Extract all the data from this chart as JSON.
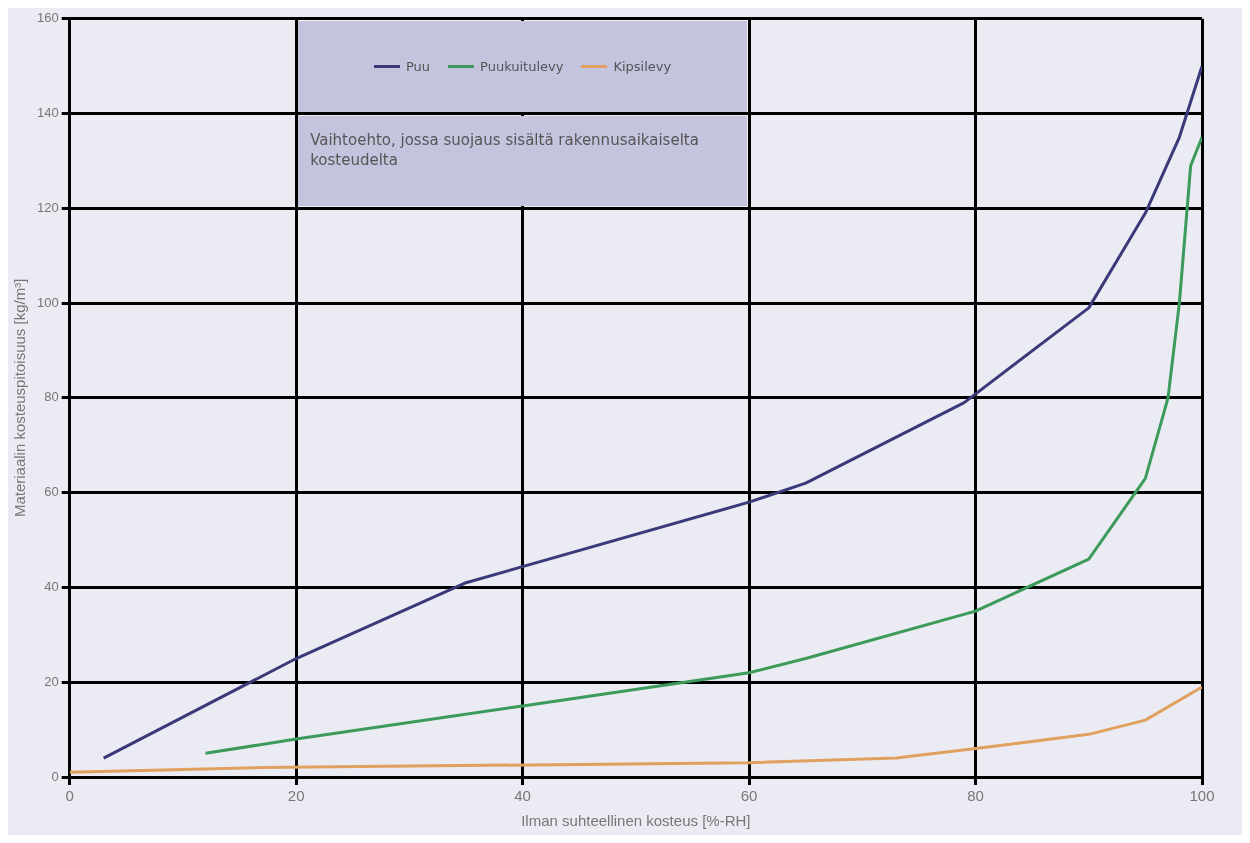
{
  "chart_data": {
    "type": "line",
    "xlabel": "Ilman suhteellinen kosteus [%-RH]",
    "ylabel": "Materiaalin kosteuspitoisuus [kg/m³]",
    "xlim": [
      0,
      100
    ],
    "xticks": [
      0,
      20,
      40,
      60,
      80,
      100
    ],
    "ylim": [
      0,
      160
    ],
    "yticks": [
      0,
      20,
      40,
      60,
      80,
      100,
      120,
      140,
      160
    ],
    "grid": true,
    "legend": "top",
    "marker": "none",
    "line_style": "solid",
    "annotations": [
      "Vaihtoehto, jossa suojaus sisältä rakennusaikaiselta kosteudelta"
    ],
    "series": [
      {
        "name": "Puu",
        "color": "#3a3a7a",
        "x": [
          3,
          20,
          35,
          60,
          65,
          79,
          90,
          95,
          98,
          100
        ],
        "values": [
          4,
          25,
          41,
          58,
          62,
          79,
          99,
          119,
          135,
          150
        ]
      },
      {
        "name": "Puukuitulevy",
        "color": "#3c9a5a",
        "x": [
          12,
          20,
          40,
          60,
          65,
          80,
          90,
          95,
          97,
          98,
          99,
          100
        ],
        "values": [
          5,
          8,
          15,
          22,
          25,
          35,
          46,
          63,
          80,
          100,
          129,
          135
        ]
      },
      {
        "name": "Kipsilevy",
        "color": "#e0a060",
        "x": [
          0,
          17,
          60,
          73,
          80,
          90,
          95,
          100
        ],
        "values": [
          1,
          2,
          3,
          4,
          6,
          9,
          12,
          19
        ]
      }
    ]
  }
}
